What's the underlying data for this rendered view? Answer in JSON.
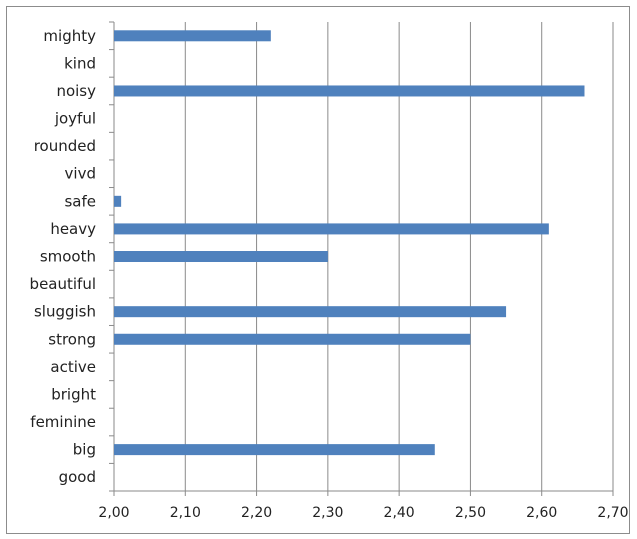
{
  "chart_data": {
    "type": "bar",
    "orientation": "horizontal",
    "categories": [
      "mighty",
      "kind",
      "noisy",
      "joyful",
      "rounded",
      "vivd",
      "safe",
      "heavy",
      "smooth",
      "beautiful",
      "sluggish",
      "strong",
      "active",
      "bright",
      "feminine",
      "big",
      "good"
    ],
    "values": [
      2.22,
      null,
      2.66,
      null,
      null,
      null,
      2.01,
      2.61,
      2.3,
      null,
      2.55,
      2.5,
      null,
      null,
      null,
      2.45,
      null
    ],
    "xlim": [
      2.0,
      2.7
    ],
    "xticks": [
      2.0,
      2.1,
      2.2,
      2.3,
      2.4,
      2.5,
      2.6,
      2.7
    ],
    "xtick_labels": [
      "2,00",
      "2,10",
      "2,20",
      "2,30",
      "2,40",
      "2,50",
      "2,60",
      "2,70"
    ],
    "grid": "vertical",
    "bar_color": "#4f81bd",
    "grid_color": "#8a8a8a"
  }
}
